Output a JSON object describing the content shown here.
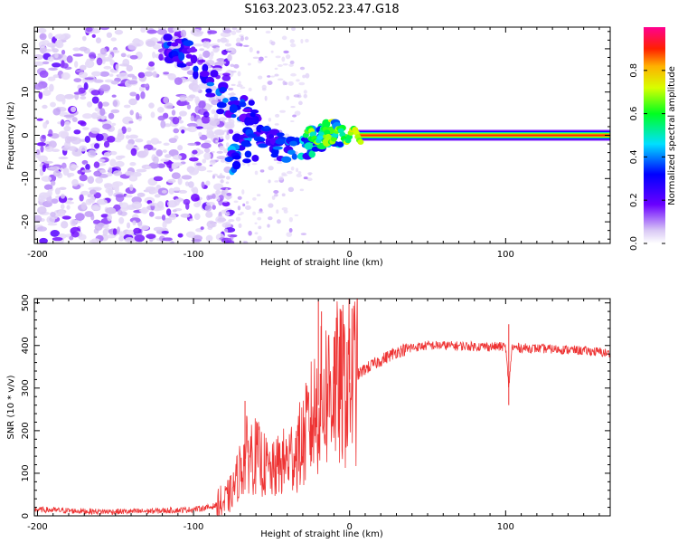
{
  "title": "S163.2023.052.23.47.G18",
  "chart_data": [
    {
      "type": "heatmap",
      "xlabel": "Height of straight line (km)",
      "ylabel": "Frequency (Hz)",
      "xlim": [
        -202,
        167
      ],
      "ylim": [
        -25,
        25
      ],
      "x_ticks": [
        -200,
        -100,
        0,
        100
      ],
      "y_ticks": [
        -20,
        -10,
        0,
        10,
        20
      ],
      "colorbar": {
        "label": "Normalized spectral amplitude",
        "range": [
          0,
          1
        ],
        "ticks": [
          0.0,
          0.2,
          0.4,
          0.6,
          0.8
        ],
        "colormap": "rainbow (white-violet, blue, cyan, green, yellow, orange, red, magenta)"
      },
      "features": {
        "noise_region_x": [
          -200,
          -85
        ],
        "descending_signal": [
          {
            "x": -115,
            "y": 20,
            "amp": 0.35
          },
          {
            "x": -105,
            "y": 19,
            "amp": 0.3
          },
          {
            "x": -80,
            "y": 8,
            "amp": 0.35
          },
          {
            "x": -60,
            "y": 5,
            "amp": 0.3
          },
          {
            "x": -75,
            "y": -6,
            "amp": 0.4
          },
          {
            "x": -55,
            "y": 0,
            "amp": 0.3
          },
          {
            "x": -45,
            "y": -3,
            "amp": 0.35
          },
          {
            "x": -25,
            "y": -2,
            "amp": 0.5
          },
          {
            "x": -15,
            "y": 0,
            "amp": 0.6
          },
          {
            "x": -5,
            "y": 1,
            "amp": 0.65
          }
        ],
        "carrier_line": {
          "x_start": 5,
          "x_end": 167,
          "freq_hz": 0,
          "amp": 0.95
        }
      }
    },
    {
      "type": "line",
      "xlabel": "Height of straight line (km)",
      "ylabel": "SNR (10 * v/v)",
      "xlim": [
        -202,
        167
      ],
      "ylim": [
        0,
        510
      ],
      "x_ticks": [
        -200,
        -100,
        0,
        100
      ],
      "y_ticks": [
        0,
        100,
        200,
        300,
        400,
        500
      ],
      "color": "#ee3333",
      "series": [
        {
          "x": [
            -202,
            -180,
            -160,
            -140,
            -120,
            -100,
            -90,
            -80,
            -75,
            -70,
            -65,
            -60,
            -55,
            -50,
            -45,
            -40,
            -35,
            -30,
            -25,
            -20,
            -15,
            -10,
            -5,
            0,
            5,
            10,
            15,
            20,
            30,
            40,
            50,
            60,
            80,
            100,
            102,
            104,
            120,
            140,
            160,
            167
          ],
          "y": [
            15,
            12,
            10,
            10,
            12,
            15,
            20,
            30,
            60,
            110,
            150,
            140,
            120,
            100,
            120,
            130,
            150,
            170,
            220,
            260,
            290,
            310,
            300,
            320,
            330,
            345,
            355,
            365,
            385,
            395,
            400,
            400,
            398,
            397,
            300,
            395,
            393,
            390,
            385,
            380
          ],
          "spikes": [
            {
              "x": -67,
              "y": 270
            },
            {
              "x": -20,
              "y": 505
            },
            {
              "x": -18,
              "y": 480
            },
            {
              "x": -10,
              "y": 420
            },
            {
              "x": 0,
              "y": 440
            },
            {
              "x": 102,
              "y": 450
            },
            {
              "x": 102,
              "y": 260
            }
          ]
        }
      ]
    }
  ]
}
